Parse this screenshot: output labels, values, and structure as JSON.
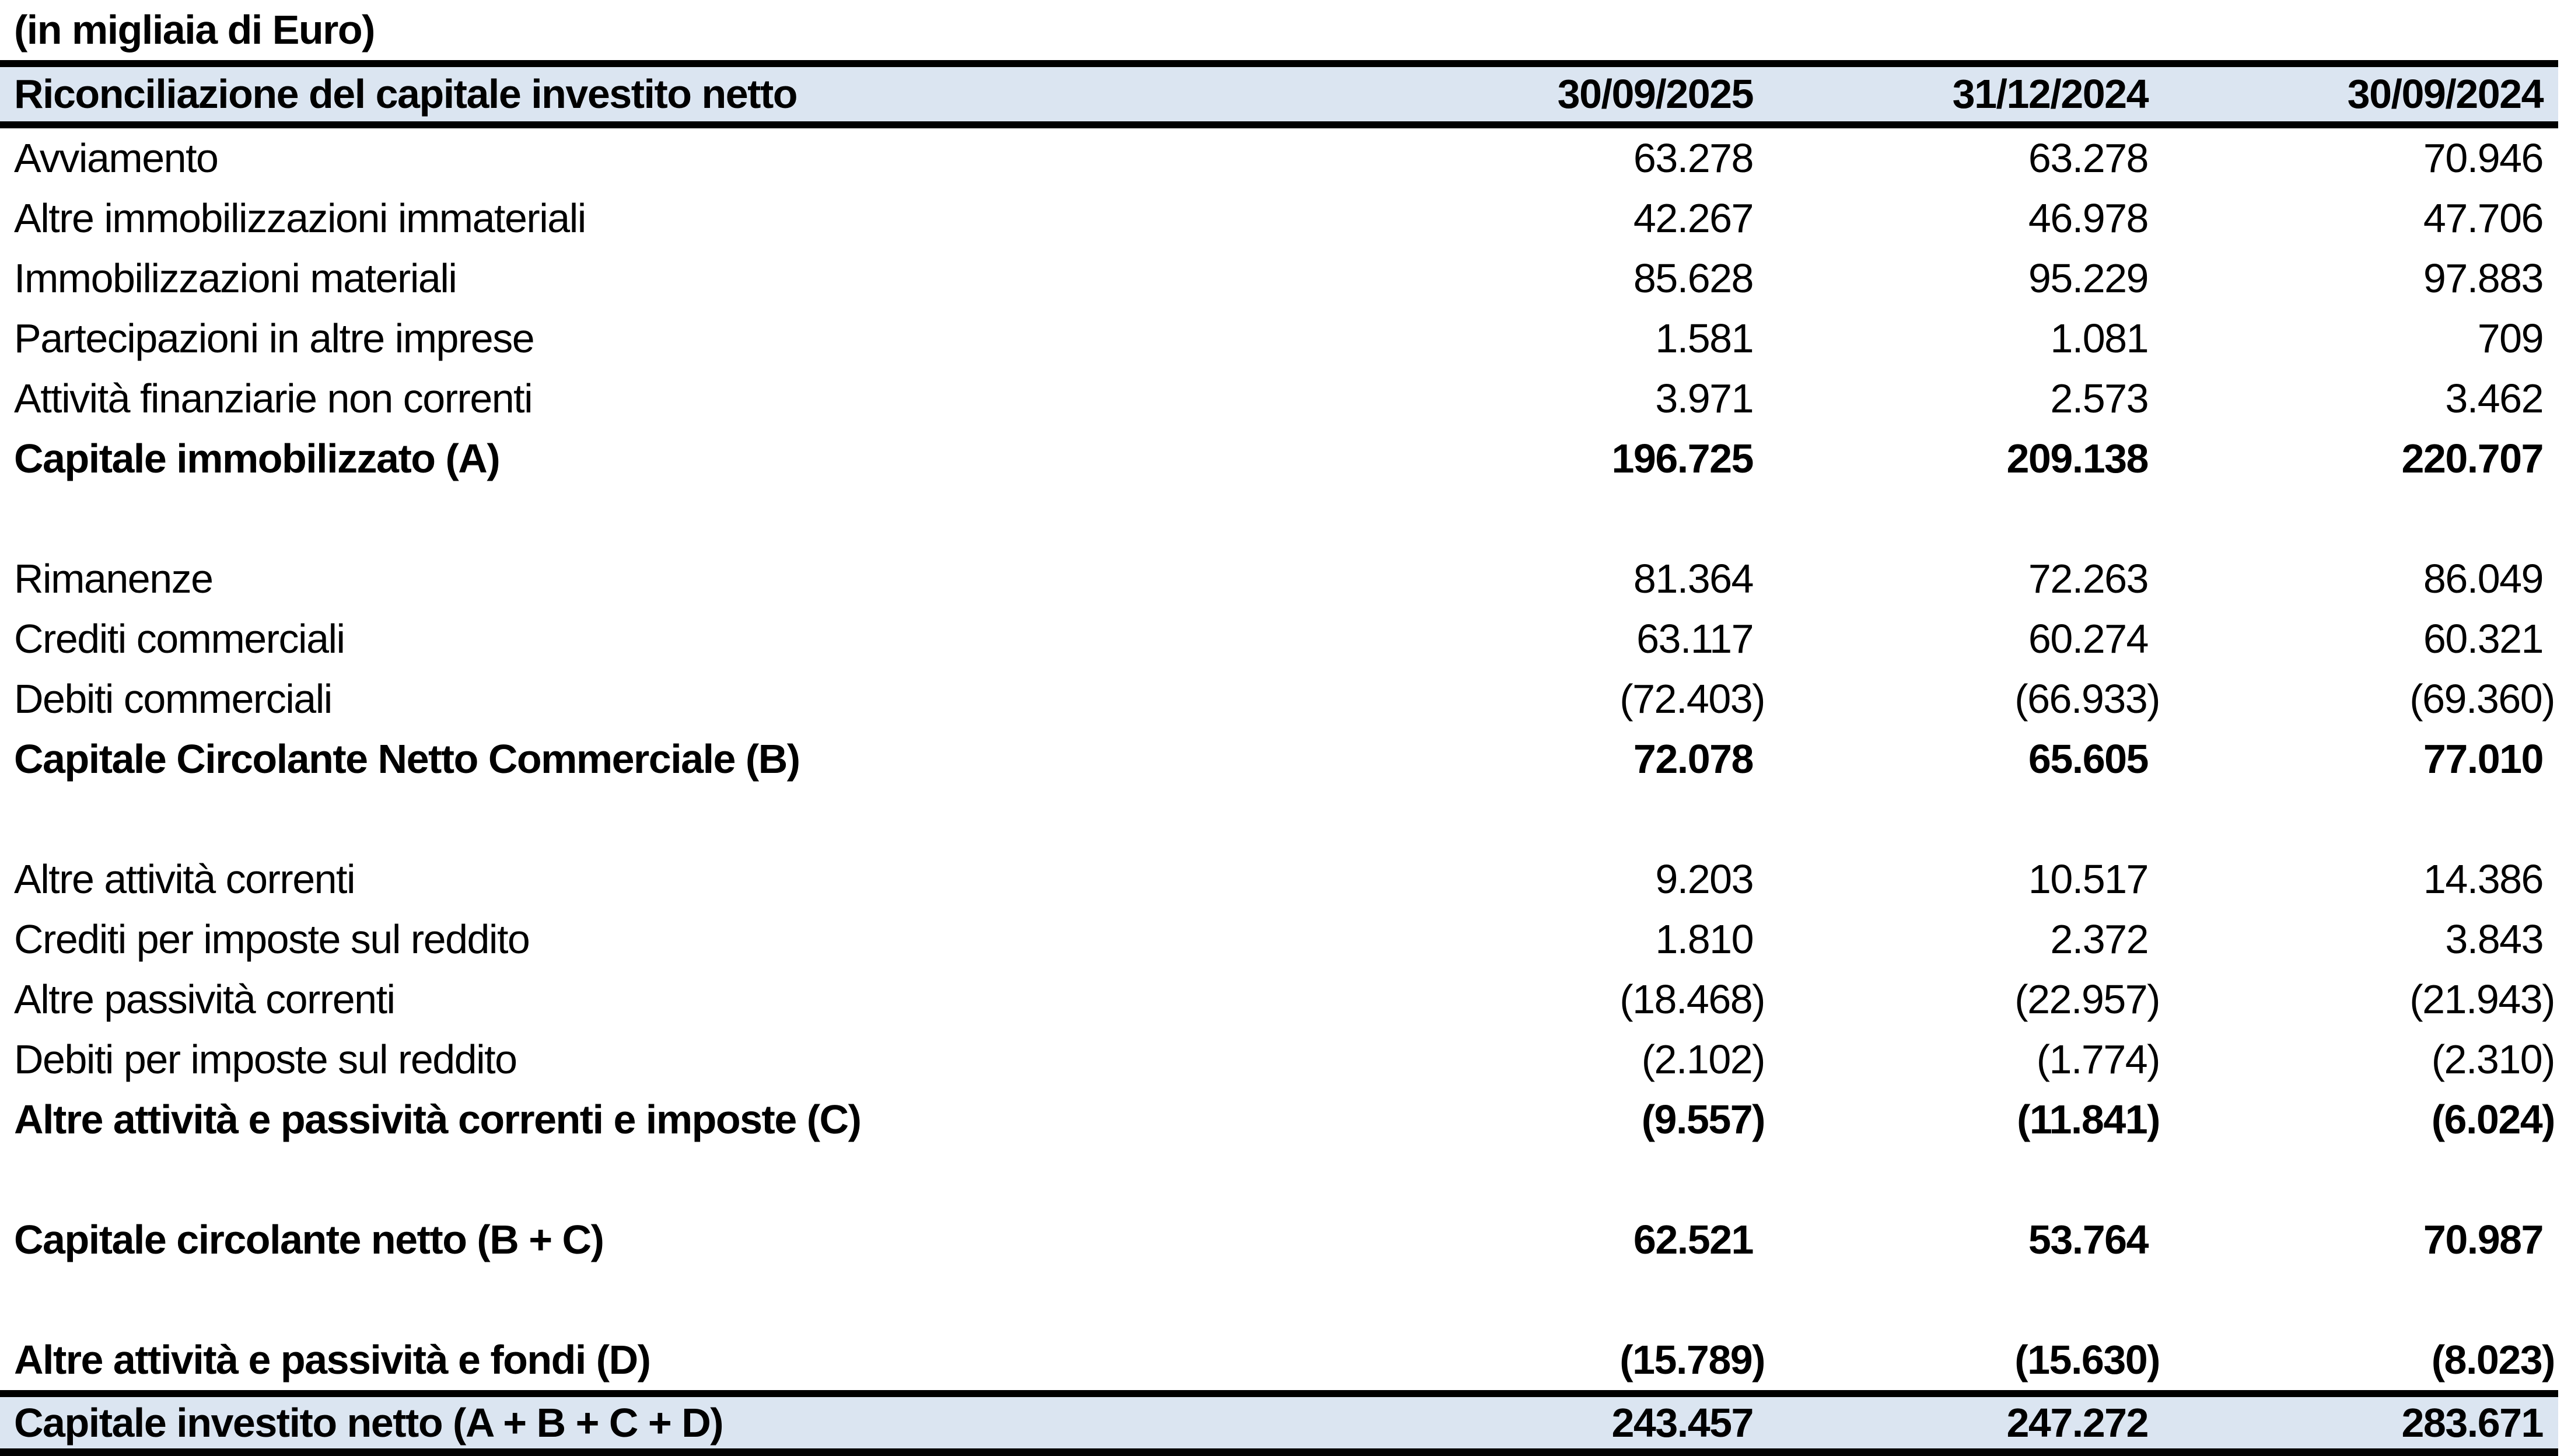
{
  "title": "(in migliaia di Euro)",
  "colors": {
    "header_bg": "#DBE5F1",
    "border": "#000000",
    "text": "#000000"
  },
  "table": {
    "header": {
      "label": "Riconciliazione del capitale investito netto",
      "columns": [
        "30/09/2025",
        "31/12/2024",
        "30/09/2024"
      ]
    },
    "rows": [
      {
        "label": "Avviamento",
        "values": [
          "63.278",
          "63.278",
          "70.946"
        ],
        "bold": false
      },
      {
        "label": "Altre immobilizzazioni immateriali",
        "values": [
          "42.267",
          "46.978",
          "47.706"
        ],
        "bold": false
      },
      {
        "label": "Immobilizzazioni materiali",
        "values": [
          "85.628",
          "95.229",
          "97.883"
        ],
        "bold": false
      },
      {
        "label": "Partecipazioni in altre imprese",
        "values": [
          "1.581",
          "1.081",
          "709"
        ],
        "bold": false
      },
      {
        "label": "Attività finanziarie non correnti",
        "values": [
          "3.971",
          "2.573",
          "3.462"
        ],
        "bold": false
      },
      {
        "label": "Capitale immobilizzato (A)",
        "values": [
          "196.725",
          "209.138",
          "220.707"
        ],
        "bold": true
      },
      {
        "blank": true
      },
      {
        "label": "Rimanenze",
        "values": [
          "81.364",
          "72.263",
          "86.049"
        ],
        "bold": false
      },
      {
        "label": "Crediti commerciali",
        "values": [
          "63.117",
          "60.274",
          "60.321"
        ],
        "bold": false
      },
      {
        "label": "Debiti commerciali",
        "values": [
          "(72.403)",
          "(66.933)",
          "(69.360)"
        ],
        "bold": false
      },
      {
        "label": "Capitale Circolante Netto Commerciale (B)",
        "values": [
          "72.078",
          "65.605",
          "77.010"
        ],
        "bold": true
      },
      {
        "blank": true
      },
      {
        "label": "Altre attività correnti",
        "values": [
          "9.203",
          "10.517",
          "14.386"
        ],
        "bold": false
      },
      {
        "label": "Crediti per imposte sul reddito",
        "values": [
          "1.810",
          "2.372",
          "3.843"
        ],
        "bold": false
      },
      {
        "label": "Altre passività correnti",
        "values": [
          "(18.468)",
          "(22.957)",
          "(21.943)"
        ],
        "bold": false
      },
      {
        "label": "Debiti per imposte sul reddito",
        "values": [
          "(2.102)",
          "(1.774)",
          "(2.310)"
        ],
        "bold": false
      },
      {
        "label": "Altre attività e passività correnti e imposte (C)",
        "values": [
          "(9.557)",
          "(11.841)",
          "(6.024)"
        ],
        "bold": true
      },
      {
        "blank": true
      },
      {
        "label": "Capitale circolante netto (B + C)",
        "values": [
          "62.521",
          "53.764",
          "70.987"
        ],
        "bold": true
      },
      {
        "blank": true
      },
      {
        "label": "Altre attività e passività e fondi (D)",
        "values": [
          "(15.789)",
          "(15.630)",
          "(8.023)"
        ],
        "bold": true
      }
    ],
    "total_row": {
      "label": "Capitale investito netto (A + B + C + D)",
      "values": [
        "243.457",
        "247.272",
        "283.671"
      ]
    }
  }
}
